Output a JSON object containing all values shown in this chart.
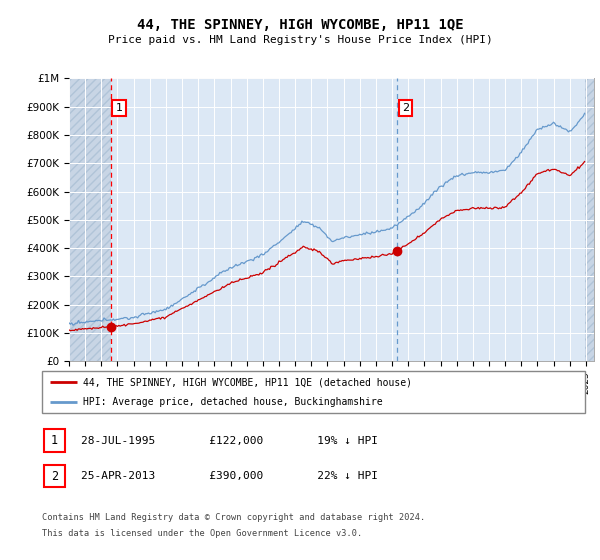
{
  "title": "44, THE SPINNEY, HIGH WYCOMBE, HP11 1QE",
  "subtitle": "Price paid vs. HM Land Registry's House Price Index (HPI)",
  "hpi_line_color": "#6699cc",
  "price_line_color": "#cc0000",
  "bg_color": "#dce8f5",
  "hatch_bg_color": "#c8d5e5",
  "legend_line1": "44, THE SPINNEY, HIGH WYCOMBE, HP11 1QE (detached house)",
  "legend_line2": "HPI: Average price, detached house, Buckinghamshire",
  "transaction1_date": "28-JUL-1995",
  "transaction1_price_str": "£122,000",
  "transaction1_note": "19% ↓ HPI",
  "transaction1_year": 1995.572,
  "transaction1_val": 122000,
  "transaction2_date": "25-APR-2013",
  "transaction2_price_str": "£390,000",
  "transaction2_note": "22% ↓ HPI",
  "transaction2_year": 2013.315,
  "transaction2_val": 390000,
  "footer1": "Contains HM Land Registry data © Crown copyright and database right 2024.",
  "footer2": "This data is licensed under the Open Government Licence v3.0.",
  "ymax": 1000000,
  "xmin": 1993.0,
  "xmax": 2025.5,
  "ytick_vals": [
    0,
    100000,
    200000,
    300000,
    400000,
    500000,
    600000,
    700000,
    800000,
    900000,
    1000000
  ],
  "ytick_labels": [
    "£0",
    "£100K",
    "£200K",
    "£300K",
    "£400K",
    "£500K",
    "£600K",
    "£700K",
    "£800K",
    "£900K",
    "£1M"
  ]
}
